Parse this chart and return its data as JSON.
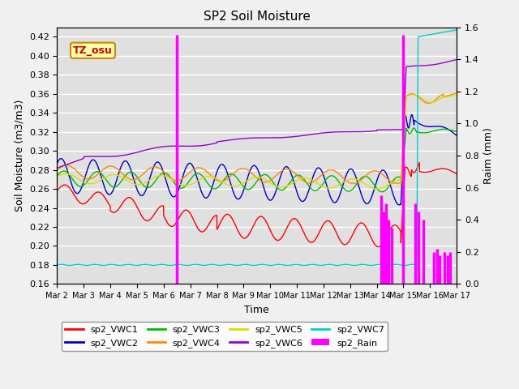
{
  "title": "SP2 Soil Moisture",
  "xlabel": "Time",
  "ylabel_left": "Soil Moisture (m3/m3)",
  "ylabel_right": "Raim (mm)",
  "ylim_left": [
    0.16,
    0.43
  ],
  "ylim_right": [
    0.0,
    1.6
  ],
  "xlim": [
    0,
    15
  ],
  "xtick_labels": [
    "Mar 2",
    "Mar 3",
    "Mar 4",
    "Mar 5",
    "Mar 6",
    "Mar 7",
    "Mar 8",
    "Mar 9",
    "Mar 10",
    "Mar 11",
    "Mar 12",
    "Mar 13",
    "Mar 14",
    "Mar 15",
    "Mar 16",
    "Mar 17"
  ],
  "xtick_positions": [
    0,
    1,
    2,
    3,
    4,
    5,
    6,
    7,
    8,
    9,
    10,
    11,
    12,
    13,
    14,
    15
  ],
  "colors": {
    "VWC1": "#ff0000",
    "VWC2": "#0000cc",
    "VWC3": "#00bb00",
    "VWC4": "#ff8800",
    "VWC5": "#dddd00",
    "VWC6": "#9900cc",
    "VWC7": "#00cccc",
    "Rain": "#ff00ff"
  },
  "tz_osu_box": {
    "text": "TZ_osu",
    "facecolor": "#ffffaa",
    "edgecolor": "#cc8800",
    "textcolor": "#cc0000"
  },
  "background_color": "#e0e0e0",
  "gridline_color": "#ffffff",
  "title_fontsize": 11,
  "rain_times": [
    4.5,
    12.15,
    12.25,
    12.35,
    12.45,
    12.55,
    13.0,
    13.45,
    13.55,
    13.75,
    14.15,
    14.25,
    14.35,
    14.55,
    14.65,
    14.75
  ],
  "rain_heights": [
    1.55,
    0.55,
    0.45,
    0.5,
    0.4,
    0.35,
    1.55,
    0.5,
    0.45,
    0.4,
    0.2,
    0.22,
    0.18,
    0.2,
    0.18,
    0.2
  ]
}
